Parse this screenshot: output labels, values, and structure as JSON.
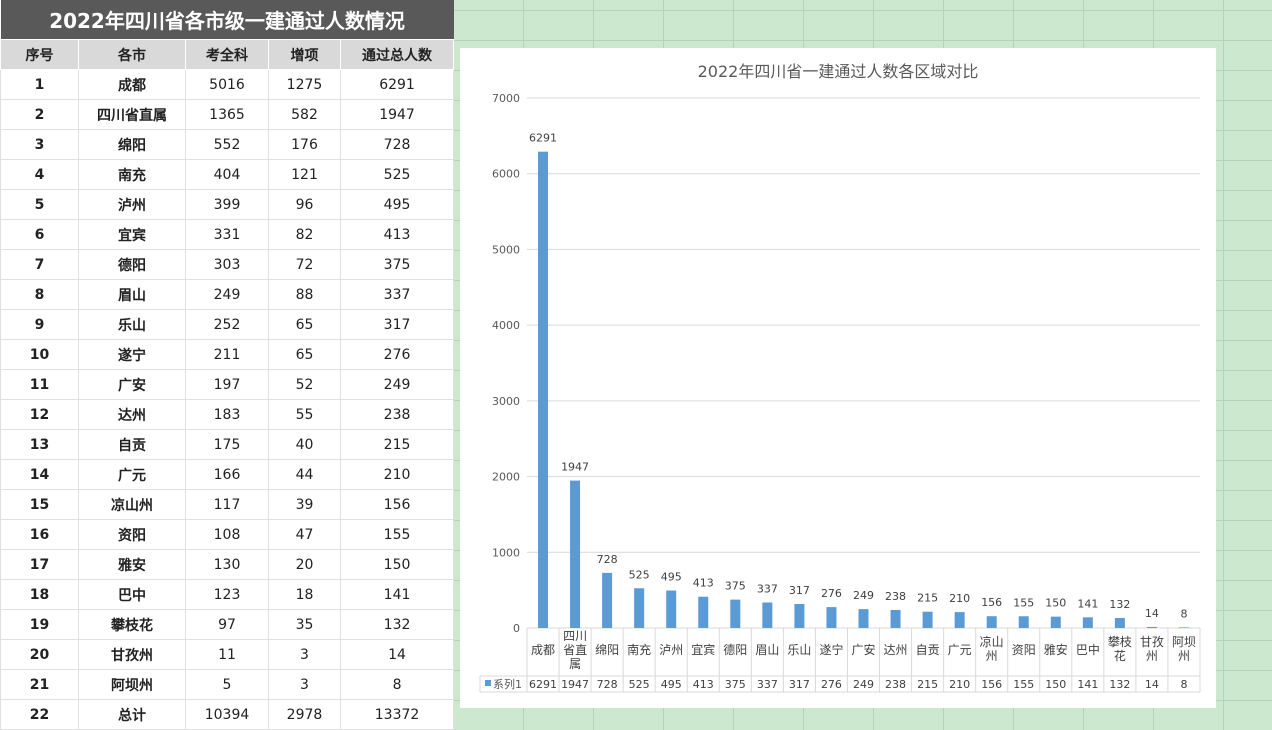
{
  "table": {
    "title": "2022年四川省各市级一建通过人数情况",
    "headers": [
      "序号",
      "各市",
      "考全科",
      "增项",
      "通过总人数"
    ],
    "rows": [
      [
        "1",
        "成都",
        "5016",
        "1275",
        "6291"
      ],
      [
        "2",
        "四川省直属",
        "1365",
        "582",
        "1947"
      ],
      [
        "3",
        "绵阳",
        "552",
        "176",
        "728"
      ],
      [
        "4",
        "南充",
        "404",
        "121",
        "525"
      ],
      [
        "5",
        "泸州",
        "399",
        "96",
        "495"
      ],
      [
        "6",
        "宜宾",
        "331",
        "82",
        "413"
      ],
      [
        "7",
        "德阳",
        "303",
        "72",
        "375"
      ],
      [
        "8",
        "眉山",
        "249",
        "88",
        "337"
      ],
      [
        "9",
        "乐山",
        "252",
        "65",
        "317"
      ],
      [
        "10",
        "遂宁",
        "211",
        "65",
        "276"
      ],
      [
        "11",
        "广安",
        "197",
        "52",
        "249"
      ],
      [
        "12",
        "达州",
        "183",
        "55",
        "238"
      ],
      [
        "13",
        "自贡",
        "175",
        "40",
        "215"
      ],
      [
        "14",
        "广元",
        "166",
        "44",
        "210"
      ],
      [
        "15",
        "凉山州",
        "117",
        "39",
        "156"
      ],
      [
        "16",
        "资阳",
        "108",
        "47",
        "155"
      ],
      [
        "17",
        "雅安",
        "130",
        "20",
        "150"
      ],
      [
        "18",
        "巴中",
        "123",
        "18",
        "141"
      ],
      [
        "19",
        "攀枝花",
        "97",
        "35",
        "132"
      ],
      [
        "20",
        "甘孜州",
        "11",
        "3",
        "14"
      ],
      [
        "21",
        "阿坝州",
        "5",
        "3",
        "8"
      ],
      [
        "22",
        "总计",
        "10394",
        "2978",
        "13372"
      ]
    ]
  },
  "chart_data": {
    "type": "bar",
    "title": "2022年四川省一建通过人数各区域对比",
    "categories": [
      "成都",
      "四川省直属",
      "绵阳",
      "南充",
      "泸州",
      "宜宾",
      "德阳",
      "眉山",
      "乐山",
      "遂宁",
      "广安",
      "达州",
      "自贡",
      "广元",
      "凉山州",
      "资阳",
      "雅安",
      "巴中",
      "攀枝花",
      "甘孜州",
      "阿坝州"
    ],
    "category_labels": [
      [
        "成都"
      ],
      [
        "四川",
        "省直",
        "属"
      ],
      [
        "绵阳"
      ],
      [
        "南充"
      ],
      [
        "泸州"
      ],
      [
        "宜宾"
      ],
      [
        "德阳"
      ],
      [
        "眉山"
      ],
      [
        "乐山"
      ],
      [
        "遂宁"
      ],
      [
        "广安"
      ],
      [
        "达州"
      ],
      [
        "自贡"
      ],
      [
        "广元"
      ],
      [
        "凉山",
        "州"
      ],
      [
        "资阳"
      ],
      [
        "雅安"
      ],
      [
        "巴中"
      ],
      [
        "攀枝",
        "花"
      ],
      [
        "甘孜",
        "州"
      ],
      [
        "阿坝",
        "州"
      ]
    ],
    "series": [
      {
        "name": "系列1",
        "values": [
          6291,
          1947,
          728,
          525,
          495,
          413,
          375,
          337,
          317,
          276,
          249,
          238,
          215,
          210,
          156,
          155,
          150,
          141,
          132,
          14,
          8
        ]
      }
    ],
    "ylim": [
      0,
      7000
    ],
    "yticks": [
      0,
      1000,
      2000,
      3000,
      4000,
      5000,
      6000,
      7000
    ],
    "grid": true,
    "data_table": true,
    "color": "#5b9bd5"
  }
}
